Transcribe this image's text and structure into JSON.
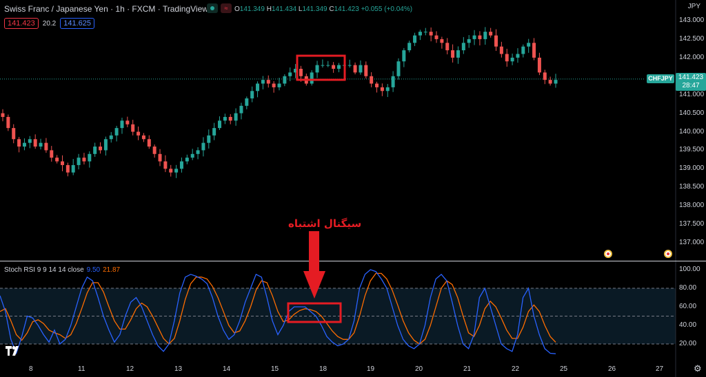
{
  "header": {
    "title": "Swiss Franc / Japanese Yen · 1h · FXCM · TradingView",
    "ohlc": {
      "o_label": "O",
      "o": "141.349",
      "h_label": "H",
      "h": "141.434",
      "l_label": "L",
      "l": "141.349",
      "c_label": "C",
      "c": "141.423",
      "change": "+0.055 (+0.04%)"
    },
    "sell_price": "141.423",
    "spread": "20.2",
    "buy_price": "141.625"
  },
  "price_axis": {
    "currency": "JPY",
    "ticks": [
      "143.000",
      "142.500",
      "142.000",
      "141.500",
      "141.000",
      "140.500",
      "140.000",
      "139.500",
      "139.000",
      "138.500",
      "138.000",
      "137.500",
      "137.000"
    ],
    "symbol_tag": "CHFJPY",
    "last_price": "141.423",
    "countdown": "28:47"
  },
  "oscillator": {
    "name": "Stoch RSI 9 9 14 14 close",
    "k_value": "9.50",
    "d_value": "21.87",
    "ticks": [
      "100.00",
      "80.00",
      "60.00",
      "40.00",
      "20.00"
    ]
  },
  "time_axis": {
    "labels": [
      "8",
      "11",
      "12",
      "13",
      "14",
      "15",
      "18",
      "19",
      "20",
      "21",
      "22",
      "25",
      "26",
      "27"
    ]
  },
  "annotation": {
    "text": "سیگنال اشتباه"
  },
  "colors": {
    "up": "#26a69a",
    "down": "#ef5350",
    "k_line": "#2962ff",
    "d_line": "#ff6d00",
    "annotation": "#e51c23",
    "background": "#000000"
  },
  "icons": {
    "logo": "tradingview-logo-icon",
    "settings": "gear-icon",
    "event": "economic-event-icon"
  },
  "chart_data": {
    "type": "candlestick",
    "price_range": [
      136.8,
      143.2
    ],
    "closes": [
      140.4,
      140.1,
      139.8,
      139.6,
      139.7,
      139.8,
      139.6,
      139.7,
      139.5,
      139.3,
      139.2,
      139.1,
      138.9,
      139.1,
      139.3,
      139.2,
      139.4,
      139.6,
      139.5,
      139.8,
      139.9,
      140.1,
      140.3,
      140.2,
      140.0,
      139.9,
      139.8,
      139.6,
      139.4,
      139.2,
      139.0,
      138.9,
      139.0,
      139.2,
      139.3,
      139.4,
      139.5,
      139.7,
      139.9,
      140.1,
      140.3,
      140.4,
      140.3,
      140.5,
      140.7,
      140.9,
      141.1,
      141.3,
      141.4,
      141.3,
      141.2,
      141.3,
      141.5,
      141.6,
      141.7,
      141.5,
      141.3,
      141.6,
      141.8,
      141.8,
      141.8,
      141.7,
      141.8,
      141.8,
      141.8,
      141.6,
      141.8,
      141.5,
      141.3,
      141.2,
      141.1,
      141.2,
      141.5,
      141.9,
      142.2,
      142.4,
      142.6,
      142.7,
      142.7,
      142.6,
      142.5,
      142.4,
      142.2,
      142.0,
      142.2,
      142.4,
      142.5,
      142.6,
      142.5,
      142.7,
      142.6,
      142.3,
      142.1,
      141.9,
      142.0,
      142.1,
      142.3,
      142.4,
      142.0,
      141.6,
      141.4,
      141.3,
      141.4
    ]
  },
  "oscillator_data": {
    "range": [
      0,
      100
    ],
    "levels": [
      80,
      50,
      20
    ],
    "k": [
      72,
      55,
      25,
      10,
      28,
      50,
      48,
      40,
      30,
      22,
      35,
      20,
      25,
      40,
      60,
      80,
      92,
      88,
      70,
      50,
      35,
      22,
      30,
      50,
      65,
      70,
      60,
      45,
      30,
      18,
      12,
      20,
      45,
      75,
      92,
      95,
      93,
      90,
      85,
      70,
      50,
      35,
      25,
      30,
      45,
      65,
      80,
      95,
      92,
      70,
      45,
      30,
      40,
      55,
      60,
      60,
      60,
      55,
      50,
      40,
      28,
      22,
      18,
      20,
      25,
      45,
      80,
      95,
      100,
      98,
      90,
      80,
      60,
      40,
      25,
      18,
      15,
      20,
      40,
      70,
      90,
      95,
      88,
      65,
      40,
      20,
      15,
      30,
      70,
      80,
      60,
      40,
      20,
      15,
      12,
      30,
      70,
      80,
      50,
      30,
      15,
      10,
      9.5
    ],
    "d": [
      55,
      58,
      45,
      30,
      24,
      32,
      44,
      46,
      42,
      35,
      32,
      30,
      26,
      30,
      42,
      58,
      75,
      86,
      86,
      76,
      60,
      45,
      36,
      36,
      46,
      58,
      64,
      60,
      50,
      38,
      26,
      20,
      26,
      45,
      68,
      85,
      92,
      92,
      90,
      82,
      70,
      55,
      40,
      32,
      34,
      45,
      60,
      78,
      88,
      86,
      72,
      55,
      44,
      46,
      52,
      56,
      58,
      57,
      55,
      50,
      42,
      34,
      28,
      25,
      25,
      32,
      50,
      72,
      88,
      96,
      96,
      90,
      78,
      62,
      45,
      32,
      24,
      20,
      25,
      40,
      60,
      80,
      88,
      84,
      70,
      50,
      32,
      28,
      40,
      58,
      66,
      60,
      48,
      35,
      26,
      26,
      38,
      55,
      62,
      55,
      40,
      28,
      21.87
    ]
  }
}
